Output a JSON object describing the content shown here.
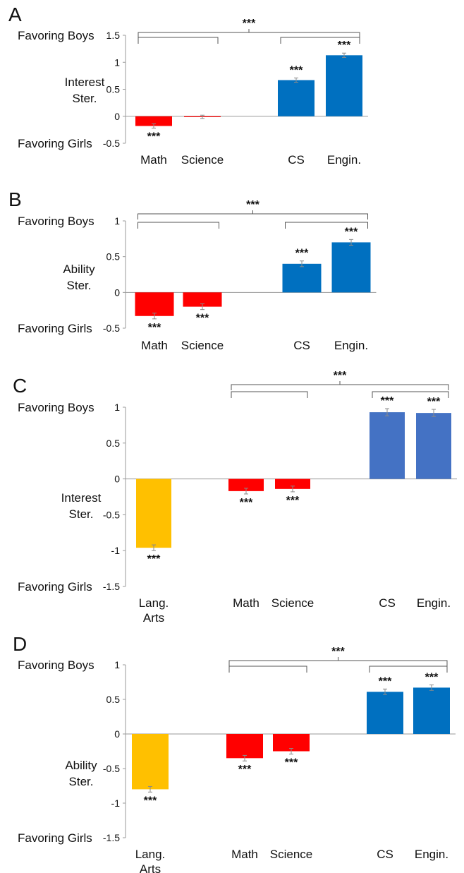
{
  "panels": [
    {
      "label": "A",
      "top_label": "Favoring Boys",
      "bottom_label": "Favoring Girls",
      "y_label_lines": [
        "Interest",
        "Ster."
      ],
      "chart_data": {
        "type": "bar",
        "categories": [
          "Math",
          "Science",
          "CS",
          "Engin."
        ],
        "values": [
          -0.18,
          -0.01,
          0.67,
          1.13
        ],
        "errors": [
          0.04,
          0.03,
          0.04,
          0.04
        ],
        "colors": [
          "#ff0000",
          "#ff0000",
          "#0070c0",
          "#0070c0"
        ],
        "significance": [
          "***",
          "",
          "***",
          "***"
        ],
        "ylim": [
          -0.5,
          1.5
        ],
        "yticks": [
          -0.5,
          0,
          0.5,
          1,
          1.5
        ],
        "ytick_labels": [
          "-0.5",
          "0",
          "0.5",
          "1",
          "1.5"
        ],
        "brackets": [
          {
            "from": 0,
            "to": 3,
            "label": "***",
            "level": "outer"
          },
          {
            "from": 0,
            "to": 1,
            "label": "",
            "level": "inner"
          },
          {
            "from": 2,
            "to": 3,
            "label": "",
            "level": "inner"
          }
        ]
      }
    },
    {
      "label": "B",
      "top_label": "Favoring Boys",
      "bottom_label": "Favoring Girls",
      "y_label_lines": [
        "Ability",
        "Ster."
      ],
      "chart_data": {
        "type": "bar",
        "categories": [
          "Math",
          "Science",
          "CS",
          "Engin."
        ],
        "values": [
          -0.33,
          -0.2,
          0.4,
          0.7
        ],
        "errors": [
          0.04,
          0.04,
          0.04,
          0.04
        ],
        "colors": [
          "#ff0000",
          "#ff0000",
          "#0070c0",
          "#0070c0"
        ],
        "significance": [
          "***",
          "***",
          "***",
          "***"
        ],
        "ylim": [
          -0.5,
          1
        ],
        "yticks": [
          -0.5,
          0,
          0.5,
          1
        ],
        "ytick_labels": [
          "-0.5",
          "0",
          "0.5",
          "1"
        ],
        "brackets": [
          {
            "from": 0,
            "to": 3,
            "label": "***",
            "level": "outer"
          },
          {
            "from": 0,
            "to": 1,
            "label": "",
            "level": "inner"
          },
          {
            "from": 2,
            "to": 3,
            "label": "",
            "level": "inner"
          }
        ]
      }
    },
    {
      "label": "C",
      "top_label": "Favoring Boys",
      "bottom_label": "Favoring Girls",
      "y_label_lines": [
        "Interest",
        "Ster."
      ],
      "chart_data": {
        "type": "bar",
        "categories": [
          "Lang.\nArts",
          "Math",
          "Science",
          "CS",
          "Engin."
        ],
        "values": [
          -0.96,
          -0.17,
          -0.14,
          0.93,
          0.92
        ],
        "errors": [
          0.04,
          0.04,
          0.04,
          0.05,
          0.05
        ],
        "colors": [
          "#ffc000",
          "#ff0000",
          "#ff0000",
          "#4472c4",
          "#4472c4"
        ],
        "significance": [
          "***",
          "***",
          "***",
          "***",
          "***"
        ],
        "ylim": [
          -1.5,
          1
        ],
        "yticks": [
          -1.5,
          -1,
          -0.5,
          0,
          0.5,
          1
        ],
        "ytick_labels": [
          "-1.5",
          "-1",
          "-0.5",
          "0",
          "0.5",
          "1"
        ],
        "brackets": [
          {
            "from": 1,
            "to": 4,
            "label": "***",
            "level": "outer"
          },
          {
            "from": 1,
            "to": 2,
            "label": "",
            "level": "inner"
          },
          {
            "from": 3,
            "to": 4,
            "label": "",
            "level": "inner"
          }
        ]
      }
    },
    {
      "label": "D",
      "top_label": "Favoring Boys",
      "bottom_label": "Favoring Girls",
      "y_label_lines": [
        "Ability",
        "Ster."
      ],
      "chart_data": {
        "type": "bar",
        "categories": [
          "Lang.\nArts",
          "Math",
          "Science",
          "CS",
          "Engin."
        ],
        "values": [
          -0.8,
          -0.35,
          -0.25,
          0.61,
          0.67
        ],
        "errors": [
          0.04,
          0.04,
          0.04,
          0.04,
          0.04
        ],
        "colors": [
          "#ffc000",
          "#ff0000",
          "#ff0000",
          "#0070c0",
          "#0070c0"
        ],
        "significance": [
          "***",
          "***",
          "***",
          "***",
          "***"
        ],
        "ylim": [
          -1.5,
          1
        ],
        "yticks": [
          -1.5,
          -1,
          -0.5,
          0,
          0.5,
          1
        ],
        "ytick_labels": [
          "-1.5",
          "-1",
          "-0.5",
          "0",
          "0.5",
          "1"
        ],
        "brackets": [
          {
            "from": 1,
            "to": 4,
            "label": "***",
            "level": "outer"
          },
          {
            "from": 1,
            "to": 2,
            "label": "",
            "level": "inner"
          },
          {
            "from": 3,
            "to": 4,
            "label": "",
            "level": "inner"
          }
        ]
      }
    }
  ]
}
